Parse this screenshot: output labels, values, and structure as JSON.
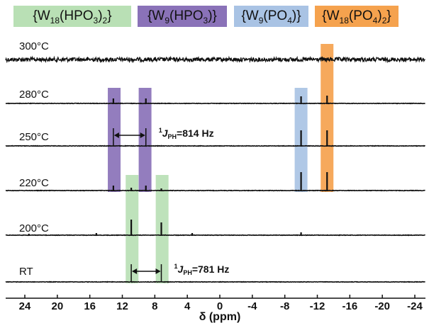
{
  "chart_data": {
    "type": "line",
    "title": "",
    "xlabel": "δ (ppm)",
    "ylabel": "",
    "xlim": [
      25,
      -25
    ],
    "x_ticks": [
      24,
      20,
      16,
      12,
      8,
      4,
      0,
      -4,
      -8,
      -12,
      -16,
      -20,
      -24
    ],
    "legend": [
      {
        "id": "w18hpo3",
        "parts": [
          [
            "{W",
            ""
          ],
          [
            "18",
            "sub"
          ],
          [
            "(HPO",
            ""
          ],
          [
            "3",
            "sub"
          ],
          [
            ")",
            ""
          ],
          [
            "2",
            "sub"
          ],
          [
            "}",
            ""
          ]
        ],
        "color": "#b9e0b5"
      },
      {
        "id": "w9hpo3",
        "parts": [
          [
            "{W",
            ""
          ],
          [
            "9",
            "sub"
          ],
          [
            "(HPO",
            ""
          ],
          [
            "3",
            "sub"
          ],
          [
            ")}",
            ""
          ]
        ],
        "color": "#8a72b8"
      },
      {
        "id": "w9po4",
        "parts": [
          [
            "{W",
            ""
          ],
          [
            "9",
            "sub"
          ],
          [
            "(PO",
            ""
          ],
          [
            "4",
            "sub"
          ],
          [
            ")}",
            ""
          ]
        ],
        "color": "#a9c3e4"
      },
      {
        "id": "w18po42",
        "parts": [
          [
            "{W",
            ""
          ],
          [
            "18",
            "sub"
          ],
          [
            "(PO",
            ""
          ],
          [
            "4",
            "sub"
          ],
          [
            ")",
            ""
          ],
          [
            "2",
            "sub"
          ],
          [
            "}",
            ""
          ]
        ],
        "color": "#f5a24e"
      }
    ],
    "highlights": [
      {
        "species": "w9hpo3",
        "ppm": 13.0,
        "from_trace": "220°C",
        "to_trace": "280°C"
      },
      {
        "species": "w9hpo3",
        "ppm": 9.2,
        "from_trace": "220°C",
        "to_trace": "280°C"
      },
      {
        "species": "w18hpo3",
        "ppm": 10.8,
        "from_trace": "RT",
        "to_trace": "220°C"
      },
      {
        "species": "w18hpo3",
        "ppm": 7.1,
        "from_trace": "RT",
        "to_trace": "220°C"
      },
      {
        "species": "w9po4",
        "ppm": -10.0,
        "from_trace": "220°C",
        "to_trace": "280°C"
      },
      {
        "species": "w18po42",
        "ppm": -13.2,
        "from_trace": "220°C",
        "to_trace": "300°C"
      }
    ],
    "series": [
      {
        "name": "300°C",
        "noise": 0.9,
        "peaks": []
      },
      {
        "name": "280°C",
        "noise": 0.25,
        "peaks": [
          {
            "ppm": 13.1,
            "height": 7
          },
          {
            "ppm": 9.1,
            "height": 7
          },
          {
            "ppm": -10.0,
            "height": 10
          },
          {
            "ppm": -13.2,
            "height": 11
          }
        ]
      },
      {
        "name": "250°C",
        "noise": 0.25,
        "peaks": [
          {
            "ppm": -10.0,
            "height": 22
          },
          {
            "ppm": -13.2,
            "height": 22
          }
        ]
      },
      {
        "name": "220°C",
        "noise": 0.25,
        "peaks": [
          {
            "ppm": 13.1,
            "height": 7
          },
          {
            "ppm": 10.9,
            "height": 4
          },
          {
            "ppm": 9.1,
            "height": 7
          },
          {
            "ppm": 7.2,
            "height": 3
          },
          {
            "ppm": -10.0,
            "height": 26
          },
          {
            "ppm": -13.2,
            "height": 26
          }
        ]
      },
      {
        "name": "200°C",
        "noise": 0.25,
        "peaks": [
          {
            "ppm": 23.5,
            "height": 2
          },
          {
            "ppm": 15.2,
            "height": 3
          },
          {
            "ppm": 10.9,
            "height": 22
          },
          {
            "ppm": 7.2,
            "height": 18
          },
          {
            "ppm": 3.4,
            "height": 3
          },
          {
            "ppm": -10.0,
            "height": 4
          }
        ]
      },
      {
        "name": "RT",
        "noise": 0.25,
        "peaks": []
      }
    ],
    "couplings": [
      {
        "prefix": "",
        "superscript": "1",
        "italic": "J",
        "subscript": "PH",
        "value": "=814 Hz",
        "from_ppm": 13.1,
        "to_ppm": 9.1,
        "trace": "250°C"
      },
      {
        "prefix": "",
        "superscript": "1",
        "italic": "J",
        "subscript": "PH",
        "value": "=781 Hz",
        "from_ppm": 10.9,
        "to_ppm": 7.2,
        "trace": "RT"
      }
    ]
  }
}
